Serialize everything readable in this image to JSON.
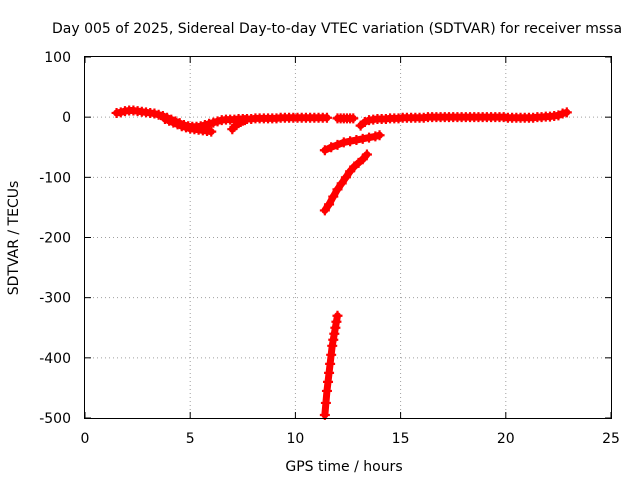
{
  "chart_data": {
    "type": "scatter",
    "title": "Day 005 of 2025, Sidereal Day-to-day VTEC variation (SDTVAR) for receiver mssa",
    "xlabel": "GPS time / hours",
    "ylabel": "SDTVAR / TECUs",
    "xlim": [
      0,
      25
    ],
    "ylim": [
      -500,
      100
    ],
    "xticks": [
      "0",
      "5",
      "10",
      "15",
      "20",
      "25"
    ],
    "yticks": [
      "100",
      "0",
      "-100",
      "-200",
      "-300",
      "-400",
      "-500"
    ],
    "grid": true,
    "marker": "+",
    "color": "#ff0000",
    "series": [
      {
        "x": [
          1.5,
          1.7,
          1.9,
          2.1,
          2.3,
          2.5,
          2.7,
          2.9,
          3.1,
          3.3,
          3.5,
          3.7,
          3.9,
          4.1,
          4.3,
          4.5,
          4.7,
          4.9,
          5.1,
          5.3,
          5.5,
          5.7,
          5.9,
          6.1,
          6.3,
          6.5,
          6.7,
          6.9,
          7.1,
          7.3,
          7.5,
          7.7,
          7.9,
          8.1,
          8.3,
          8.5,
          8.7,
          8.9,
          9.1,
          9.3,
          9.5,
          9.7,
          9.9,
          10.1,
          10.3,
          10.5,
          10.7,
          10.9,
          11.1,
          11.3,
          11.5
        ],
        "y": [
          7,
          8,
          10,
          11,
          11,
          10,
          9,
          8,
          7,
          6,
          4,
          2,
          -1,
          -4,
          -7,
          -10,
          -13,
          -15,
          -16,
          -16,
          -15,
          -13,
          -11,
          -9,
          -7,
          -5,
          -4,
          -4,
          -4,
          -3,
          -3,
          -3,
          -3,
          -2,
          -2,
          -2,
          -2,
          -2,
          -2,
          -1,
          -1,
          -1,
          -1,
          -1,
          -1,
          -1,
          -1,
          -1,
          -1,
          -1,
          -1
        ]
      },
      {
        "x": [
          3.8,
          4.0,
          4.2,
          4.4,
          4.6,
          4.8,
          5.0,
          5.2,
          5.4,
          5.6,
          5.8,
          6.0
        ],
        "y": [
          -3,
          -6,
          -9,
          -12,
          -15,
          -17,
          -19,
          -20,
          -21,
          -22,
          -23,
          -24
        ]
      },
      {
        "x": [
          7.0,
          7.1,
          7.2,
          7.3,
          7.4,
          7.5,
          7.6
        ],
        "y": [
          -20,
          -16,
          -13,
          -10,
          -8,
          -6,
          -5
        ]
      },
      {
        "x": [
          12.0,
          12.15,
          12.3,
          12.45,
          12.6,
          12.75
        ],
        "y": [
          -2,
          -2,
          -2,
          -2,
          -2,
          -2
        ]
      },
      {
        "x": [
          13.1,
          13.3,
          13.5,
          13.7,
          13.9,
          14.1,
          14.3,
          14.5,
          14.7,
          14.9,
          15.1,
          15.3,
          15.5,
          15.7,
          15.9,
          16.1,
          16.3,
          16.5,
          16.7,
          16.9,
          17.1,
          17.3,
          17.5,
          17.7,
          17.9,
          18.1,
          18.3,
          18.5,
          18.7,
          18.9,
          19.1,
          19.3,
          19.5,
          19.7,
          19.9,
          20.1,
          20.3,
          20.5,
          20.7,
          20.9,
          21.1,
          21.3,
          21.5,
          21.7,
          21.9,
          22.1,
          22.3,
          22.5,
          22.7,
          22.9
        ],
        "y": [
          -14,
          -8,
          -5,
          -4,
          -3,
          -3,
          -3,
          -2,
          -2,
          -2,
          -1,
          -1,
          -1,
          -1,
          -1,
          -1,
          0,
          0,
          0,
          0,
          0,
          0,
          0,
          0,
          0,
          0,
          0,
          0,
          0,
          0,
          0,
          0,
          0,
          0,
          0,
          -1,
          -1,
          -1,
          -1,
          -1,
          -1,
          -1,
          0,
          0,
          1,
          1,
          2,
          3,
          6,
          8
        ]
      },
      {
        "x": [
          11.4,
          11.7,
          12.0,
          12.3,
          12.6,
          12.9,
          13.2,
          13.5,
          13.8,
          14.0
        ],
        "y": [
          -55,
          -50,
          -46,
          -42,
          -40,
          -38,
          -36,
          -34,
          -32,
          -30
        ]
      },
      {
        "x": [
          11.4,
          11.6,
          11.8,
          12.0,
          12.2,
          12.4,
          12.6,
          12.8,
          13.0,
          13.2,
          13.4
        ],
        "y": [
          -155,
          -145,
          -132,
          -120,
          -110,
          -100,
          -90,
          -82,
          -76,
          -70,
          -62
        ]
      },
      {
        "x": [
          11.4,
          11.45,
          11.5,
          11.55,
          11.6,
          11.65,
          11.7,
          11.75,
          11.8,
          11.85,
          11.9,
          11.95,
          12.0
        ],
        "y": [
          -495,
          -475,
          -455,
          -440,
          -425,
          -410,
          -395,
          -380,
          -370,
          -360,
          -350,
          -340,
          -330
        ]
      }
    ]
  }
}
